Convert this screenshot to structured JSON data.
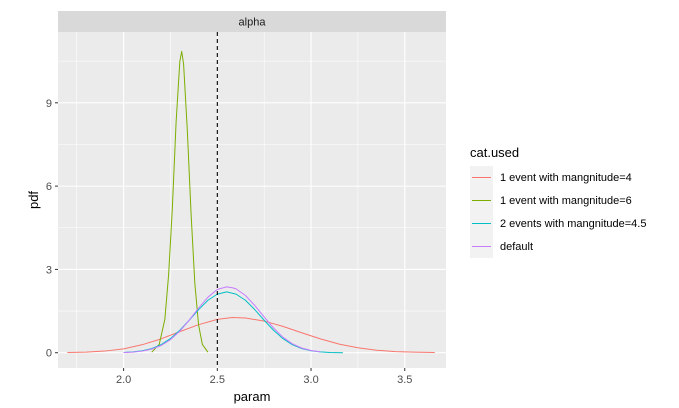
{
  "chart_data": {
    "type": "line",
    "facet_label": "alpha",
    "xlabel": "param",
    "ylabel": "pdf",
    "xlim": [
      1.65,
      3.72
    ],
    "ylim": [
      -0.55,
      11.55
    ],
    "x_ticks": [
      2.0,
      2.5,
      3.0,
      3.5
    ],
    "x_tick_labels": [
      "2.0",
      "2.5",
      "3.0",
      "3.5"
    ],
    "y_ticks": [
      0,
      3,
      6,
      9
    ],
    "y_tick_labels": [
      "0",
      "3",
      "6",
      "9"
    ],
    "grid": true,
    "vline": {
      "x": 2.5,
      "style": "dashed",
      "color": "#000000"
    },
    "legend": {
      "title": "cat.used",
      "position": "right",
      "entries": [
        {
          "label": "1 event with mangnitude=4",
          "color": "#F8766D"
        },
        {
          "label": "1 event with mangnitude=6",
          "color": "#7CAE00"
        },
        {
          "label": "2 events with mangnitude=4.5",
          "color": "#00BFC4"
        },
        {
          "label": "default",
          "color": "#C77CFF"
        }
      ]
    },
    "series": [
      {
        "name": "1 event with mangnitude=4",
        "color": "#F8766D",
        "x": [
          1.7,
          1.8,
          1.9,
          2.0,
          2.1,
          2.2,
          2.3,
          2.4,
          2.5,
          2.58,
          2.65,
          2.75,
          2.85,
          2.95,
          3.05,
          3.15,
          3.25,
          3.35,
          3.45,
          3.55,
          3.66
        ],
        "y": [
          0.01,
          0.02,
          0.06,
          0.14,
          0.29,
          0.5,
          0.76,
          1.01,
          1.2,
          1.27,
          1.25,
          1.14,
          0.95,
          0.72,
          0.5,
          0.31,
          0.18,
          0.09,
          0.04,
          0.02,
          0.01
        ]
      },
      {
        "name": "1 event with mangnitude=6",
        "color": "#7CAE00",
        "x": [
          2.15,
          2.19,
          2.22,
          2.24,
          2.26,
          2.28,
          2.3,
          2.31,
          2.32,
          2.34,
          2.36,
          2.38,
          2.4,
          2.42,
          2.45
        ],
        "y": [
          0.02,
          0.3,
          1.2,
          2.8,
          5.2,
          8.3,
          10.5,
          10.85,
          10.4,
          8.0,
          5.0,
          2.5,
          1.0,
          0.3,
          0.02
        ]
      },
      {
        "name": "2 events with mangnitude=4.5",
        "color": "#00BFC4",
        "x": [
          2.0,
          2.05,
          2.1,
          2.15,
          2.2,
          2.25,
          2.3,
          2.35,
          2.4,
          2.45,
          2.5,
          2.55,
          2.6,
          2.65,
          2.7,
          2.75,
          2.8,
          2.85,
          2.9,
          2.95,
          3.0,
          3.05,
          3.1,
          3.17
        ],
        "y": [
          0.01,
          0.03,
          0.07,
          0.15,
          0.29,
          0.51,
          0.81,
          1.17,
          1.55,
          1.89,
          2.11,
          2.19,
          2.11,
          1.89,
          1.55,
          1.17,
          0.81,
          0.51,
          0.29,
          0.15,
          0.07,
          0.03,
          0.01,
          0.0
        ]
      },
      {
        "name": "default",
        "color": "#C77CFF",
        "x": [
          2.0,
          2.05,
          2.1,
          2.15,
          2.2,
          2.25,
          2.3,
          2.35,
          2.4,
          2.45,
          2.5,
          2.55,
          2.58,
          2.6,
          2.65,
          2.7,
          2.75,
          2.8,
          2.85,
          2.9,
          2.95,
          3.0,
          3.05
        ],
        "y": [
          0.01,
          0.02,
          0.06,
          0.13,
          0.26,
          0.47,
          0.78,
          1.17,
          1.61,
          2.0,
          2.28,
          2.37,
          2.34,
          2.3,
          2.06,
          1.7,
          1.29,
          0.89,
          0.56,
          0.32,
          0.17,
          0.08,
          0.03
        ]
      }
    ]
  }
}
